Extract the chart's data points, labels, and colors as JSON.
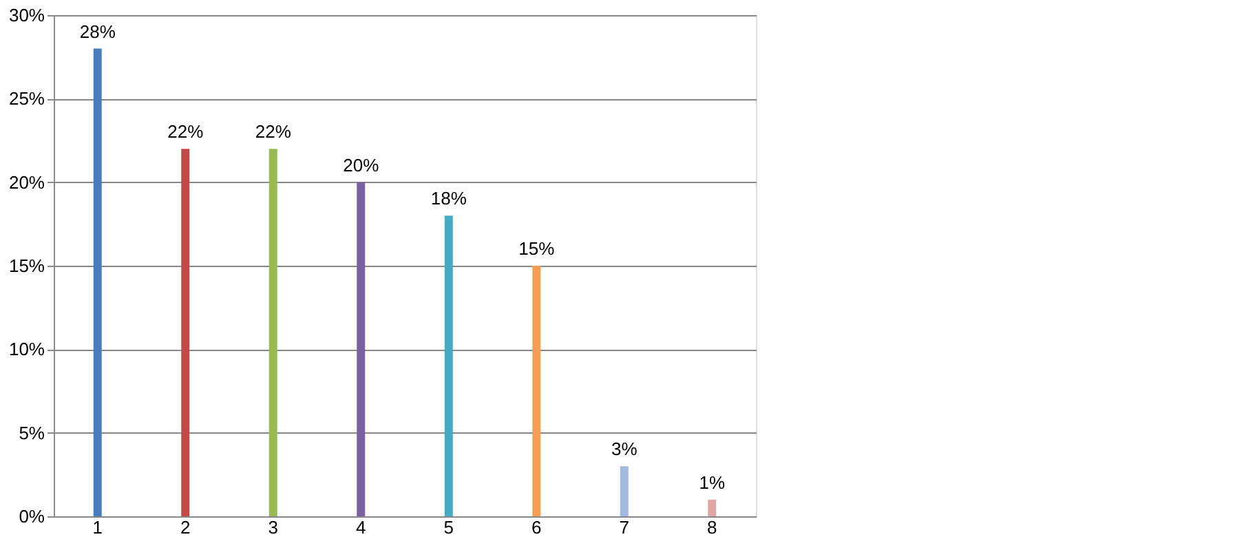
{
  "chart_data": {
    "type": "bar",
    "categories": [
      "1",
      "2",
      "3",
      "4",
      "5",
      "6",
      "7",
      "8"
    ],
    "values": [
      28,
      22,
      22,
      20,
      18,
      15,
      3,
      1
    ],
    "colors": [
      "#4a7ebb",
      "#be4b48",
      "#98b954",
      "#7d60a0",
      "#46aac5",
      "#f59d56",
      "#a5b9e0",
      "#e0a5a5"
    ],
    "value_labels": [
      "28%",
      "22%",
      "22%",
      "20%",
      "18%",
      "15%",
      "3%",
      "1%"
    ],
    "ylim": [
      0,
      30
    ],
    "yticks": [
      {
        "value": 0,
        "label": "0%"
      },
      {
        "value": 5,
        "label": "5%"
      },
      {
        "value": 10,
        "label": "10%"
      },
      {
        "value": 15,
        "label": "15%"
      },
      {
        "value": 20,
        "label": "20%"
      },
      {
        "value": 25,
        "label": "25%"
      },
      {
        "value": 30,
        "label": "30%"
      }
    ],
    "grid": "y"
  }
}
